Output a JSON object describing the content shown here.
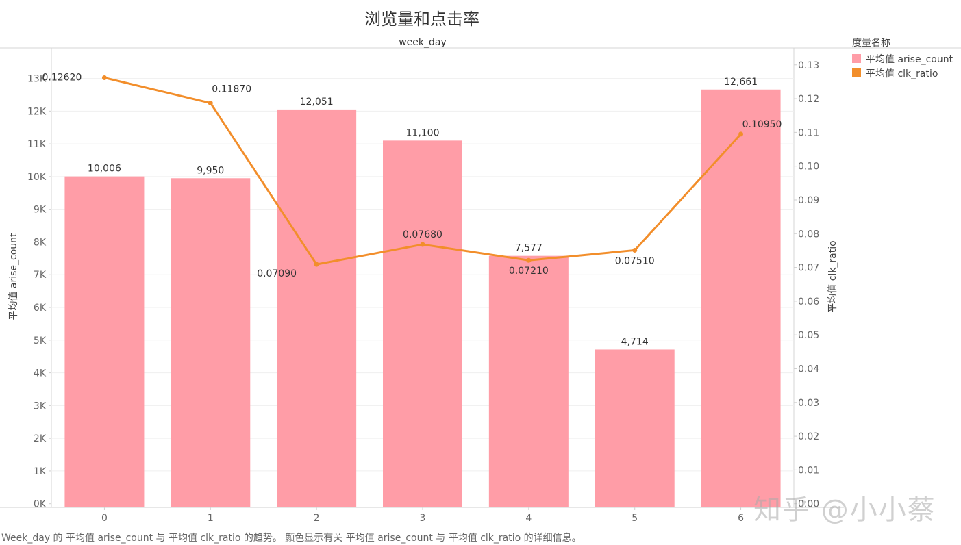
{
  "chart_data": {
    "type": "bar",
    "title": "浏览量和点击率",
    "header": "week_day",
    "categories": [
      "0",
      "1",
      "2",
      "3",
      "4",
      "5",
      "6"
    ],
    "series": [
      {
        "name": "平均值 arise_count",
        "type": "bar",
        "axis": "left",
        "color": "#FF9DA7",
        "values": [
          10006,
          9950,
          12051,
          11100,
          7577,
          4714,
          12661
        ],
        "labels": [
          "10,006",
          "9,950",
          "12,051",
          "11,100",
          "7,577",
          "4,714",
          "12,661"
        ]
      },
      {
        "name": "平均值 clk_ratio",
        "type": "line",
        "axis": "right",
        "color": "#F28E2B",
        "values": [
          0.1262,
          0.1187,
          0.0709,
          0.0768,
          0.0721,
          0.0751,
          0.1095
        ],
        "labels": [
          "0.12620",
          "0.11870",
          "0.07090",
          "0.07680",
          "0.07210",
          "0.07510",
          "0.10950"
        ]
      }
    ],
    "y_left": {
      "label": "平均值 arise_count",
      "ylim": [
        0,
        13600
      ],
      "ticks": [
        0,
        1000,
        2000,
        3000,
        4000,
        5000,
        6000,
        7000,
        8000,
        9000,
        10000,
        11000,
        12000,
        13000
      ],
      "tick_labels": [
        "0K",
        "1K",
        "2K",
        "3K",
        "4K",
        "5K",
        "6K",
        "7K",
        "8K",
        "9K",
        "10K",
        "11K",
        "12K",
        "13K"
      ]
    },
    "y_right": {
      "label": "平均值 clk_ratio",
      "ylim": [
        0,
        0.1318
      ],
      "ticks": [
        0,
        0.01,
        0.02,
        0.03,
        0.04,
        0.05,
        0.06,
        0.07,
        0.08,
        0.09,
        0.1,
        0.11,
        0.12,
        0.13
      ],
      "tick_labels": [
        "0.00",
        "0.01",
        "0.02",
        "0.03",
        "0.04",
        "0.05",
        "0.06",
        "0.07",
        "0.08",
        "0.09",
        "0.10",
        "0.11",
        "0.12",
        "0.13"
      ]
    },
    "grid": true,
    "legend": {
      "title": "度量名称",
      "position": "right"
    }
  },
  "caption": "Week_day 的 平均值 arise_count 与 平均值 clk_ratio 的趋势。 颜色显示有关 平均值 arise_count 与 平均值 clk_ratio 的详细信息。",
  "watermark": "知乎 @小小蔡"
}
